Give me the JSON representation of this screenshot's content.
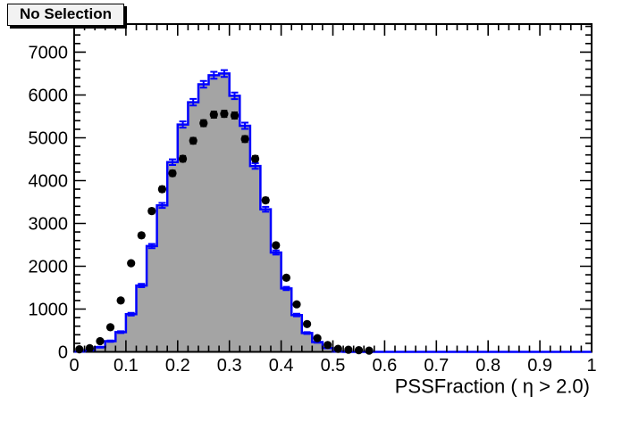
{
  "title_box": {
    "label": "No Selection"
  },
  "axes": {
    "x": {
      "title": "PSSFraction ( η > 2.0)",
      "min": 0,
      "max": 1,
      "major_step": 0.1,
      "minor_step": 0.02,
      "major_tick_labels": [
        "0",
        "0.1",
        "0.2",
        "0.3",
        "0.4",
        "0.5",
        "0.6",
        "0.7",
        "0.8",
        "0.9",
        "1"
      ]
    },
    "y": {
      "min": 0,
      "max": 7655,
      "major_step": 1000,
      "minor_step": 200,
      "major_tick_labels": [
        "0",
        "1000",
        "2000",
        "3000",
        "4000",
        "5000",
        "6000",
        "7000"
      ]
    }
  },
  "colors": {
    "histogram_fill": "#a4a4a4",
    "histogram_line": "#0000ff",
    "marker": "#000000",
    "frame": "#000000",
    "title_box_bg": "#f2f2f2"
  },
  "chart_data": {
    "type": "bar",
    "subtype": "step-histogram-with-scatter-overlay",
    "title": "No Selection",
    "xlabel": "PSSFraction ( η > 2.0)",
    "ylabel": "",
    "xlim": [
      0,
      1
    ],
    "ylim": [
      0,
      7655
    ],
    "grid": false,
    "legend": "none",
    "series": [
      {
        "name": "filled-histogram",
        "style": "step-filled",
        "line_color": "#0000ff",
        "fill_color": "#a4a4a4",
        "errors": "sqrt",
        "x_min": 0,
        "bin_width": 0.02,
        "n_bins": 50,
        "values": [
          8,
          35,
          110,
          250,
          460,
          880,
          1550,
          2470,
          3420,
          4430,
          5310,
          5830,
          6250,
          6460,
          6500,
          5980,
          5280,
          4340,
          3330,
          2320,
          1480,
          860,
          440,
          230,
          92,
          10,
          0,
          0,
          0,
          0,
          0,
          0,
          0,
          0,
          0,
          0,
          0,
          0,
          0,
          0,
          0,
          0,
          0,
          0,
          0,
          0,
          0,
          0,
          0,
          0
        ]
      },
      {
        "name": "data-points",
        "style": "marker",
        "marker": "filled-circle",
        "color": "#000000",
        "errors": "sqrt",
        "x": [
          0.01,
          0.03,
          0.05,
          0.07,
          0.09,
          0.11,
          0.13,
          0.15,
          0.17,
          0.19,
          0.21,
          0.23,
          0.25,
          0.27,
          0.29,
          0.31,
          0.33,
          0.35,
          0.37,
          0.39,
          0.41,
          0.43,
          0.45,
          0.47,
          0.49,
          0.51,
          0.53,
          0.55,
          0.57
        ],
        "y": [
          60,
          85,
          250,
          575,
          1200,
          2070,
          2720,
          3290,
          3800,
          4170,
          4510,
          4930,
          5340,
          5540,
          5560,
          5520,
          4970,
          4510,
          3540,
          2490,
          1730,
          1110,
          650,
          320,
          160,
          70,
          50,
          40,
          30
        ]
      }
    ]
  }
}
